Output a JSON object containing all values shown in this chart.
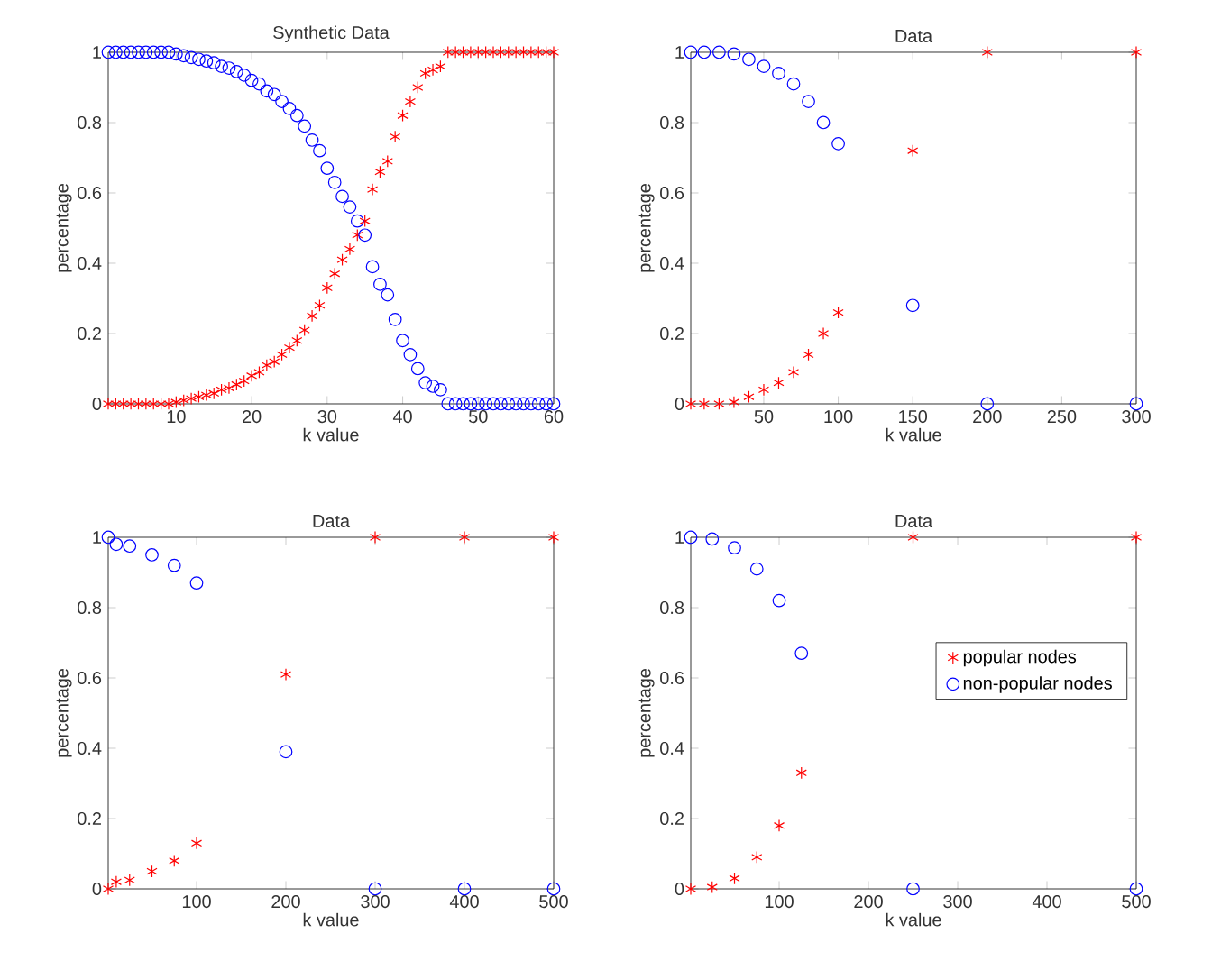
{
  "chart_data": [
    {
      "type": "scatter",
      "title": "Synthetic Data",
      "xlabel": "k value",
      "ylabel": "percentage",
      "xlim": [
        1,
        60
      ],
      "xticks": [
        10,
        20,
        30,
        40,
        50,
        60
      ],
      "ylim": [
        0,
        1
      ],
      "yticks": [
        0,
        0.2,
        0.4,
        0.6,
        0.8,
        1
      ],
      "legend": false,
      "x": [
        1,
        2,
        3,
        4,
        5,
        6,
        7,
        8,
        9,
        10,
        11,
        12,
        13,
        14,
        15,
        16,
        17,
        18,
        19,
        20,
        21,
        22,
        23,
        24,
        25,
        26,
        27,
        28,
        29,
        30,
        31,
        32,
        33,
        34,
        35,
        36,
        37,
        38,
        39,
        40,
        41,
        42,
        43,
        44,
        45,
        46,
        47,
        48,
        49,
        50,
        51,
        52,
        53,
        54,
        55,
        56,
        57,
        58,
        59,
        60
      ],
      "series": [
        {
          "color": "#ff0000",
          "marker": "cross",
          "values": [
            0,
            0,
            0,
            0,
            0,
            0,
            0,
            0,
            0,
            0.005,
            0.01,
            0.015,
            0.02,
            0.025,
            0.03,
            0.04,
            0.045,
            0.055,
            0.065,
            0.08,
            0.09,
            0.11,
            0.12,
            0.14,
            0.16,
            0.18,
            0.21,
            0.25,
            0.28,
            0.33,
            0.37,
            0.41,
            0.44,
            0.48,
            0.52,
            0.61,
            0.66,
            0.69,
            0.76,
            0.82,
            0.86,
            0.9,
            0.94,
            0.95,
            0.96,
            1,
            1,
            1,
            1,
            1,
            1,
            1,
            1,
            1,
            1,
            1,
            1,
            1,
            1,
            1
          ]
        },
        {
          "color": "#0000ff",
          "marker": "circle",
          "values": [
            1,
            1,
            1,
            1,
            1,
            1,
            1,
            1,
            1,
            0.995,
            0.99,
            0.985,
            0.98,
            0.975,
            0.97,
            0.96,
            0.955,
            0.945,
            0.935,
            0.92,
            0.91,
            0.89,
            0.88,
            0.86,
            0.84,
            0.82,
            0.79,
            0.75,
            0.72,
            0.67,
            0.63,
            0.59,
            0.56,
            0.52,
            0.48,
            0.39,
            0.34,
            0.31,
            0.24,
            0.18,
            0.14,
            0.1,
            0.06,
            0.05,
            0.04,
            0,
            0,
            0,
            0,
            0,
            0,
            0,
            0,
            0,
            0,
            0,
            0,
            0,
            0,
            0
          ]
        }
      ]
    },
    {
      "type": "scatter",
      "title": "Data",
      "xlabel": "k value",
      "ylabel": "percentage",
      "xlim": [
        1,
        300
      ],
      "xticks": [
        50,
        100,
        150,
        200,
        250,
        300
      ],
      "ylim": [
        0,
        1
      ],
      "yticks": [
        0,
        0.2,
        0.4,
        0.6,
        0.8,
        1
      ],
      "legend": false,
      "x": [
        1,
        10,
        20,
        30,
        40,
        50,
        60,
        70,
        80,
        90,
        100,
        150,
        200,
        300
      ],
      "series": [
        {
          "color": "#ff0000",
          "marker": "cross",
          "values": [
            0,
            0,
            0,
            0.005,
            0.02,
            0.04,
            0.06,
            0.09,
            0.14,
            0.2,
            0.26,
            0.72,
            1,
            1
          ]
        },
        {
          "color": "#0000ff",
          "marker": "circle",
          "values": [
            1,
            1,
            1,
            0.995,
            0.98,
            0.96,
            0.94,
            0.91,
            0.86,
            0.8,
            0.74,
            0.28,
            0,
            0
          ]
        }
      ]
    },
    {
      "type": "scatter",
      "title": "Data",
      "xlabel": "k value",
      "ylabel": "percentage",
      "xlim": [
        1,
        500
      ],
      "xticks": [
        100,
        200,
        300,
        400,
        500
      ],
      "ylim": [
        0,
        1
      ],
      "yticks": [
        0,
        0.2,
        0.4,
        0.6,
        0.8,
        1
      ],
      "legend": false,
      "x": [
        1,
        10,
        25,
        50,
        75,
        100,
        200,
        300,
        400,
        500
      ],
      "series": [
        {
          "color": "#ff0000",
          "marker": "cross",
          "values": [
            0,
            0.02,
            0.025,
            0.05,
            0.08,
            0.13,
            0.61,
            1,
            1,
            1
          ]
        },
        {
          "color": "#0000ff",
          "marker": "circle",
          "values": [
            1,
            0.98,
            0.975,
            0.95,
            0.92,
            0.87,
            0.39,
            0,
            0,
            0
          ]
        }
      ]
    },
    {
      "type": "scatter",
      "title": "Data",
      "xlabel": "k value",
      "ylabel": "percentage",
      "xlim": [
        1,
        500
      ],
      "xticks": [
        100,
        200,
        300,
        400,
        500
      ],
      "ylim": [
        0,
        1
      ],
      "yticks": [
        0,
        0.2,
        0.4,
        0.6,
        0.8,
        1
      ],
      "legend": "right",
      "x": [
        1,
        25,
        50,
        75,
        100,
        125,
        250,
        500
      ],
      "series": [
        {
          "name": "popular nodes",
          "color": "#ff0000",
          "marker": "cross",
          "values": [
            0,
            0.005,
            0.03,
            0.09,
            0.18,
            0.33,
            1,
            1
          ]
        },
        {
          "name": "non-popular nodes",
          "color": "#0000ff",
          "marker": "circle",
          "values": [
            1,
            0.995,
            0.97,
            0.91,
            0.82,
            0.67,
            0,
            0
          ]
        }
      ]
    }
  ]
}
